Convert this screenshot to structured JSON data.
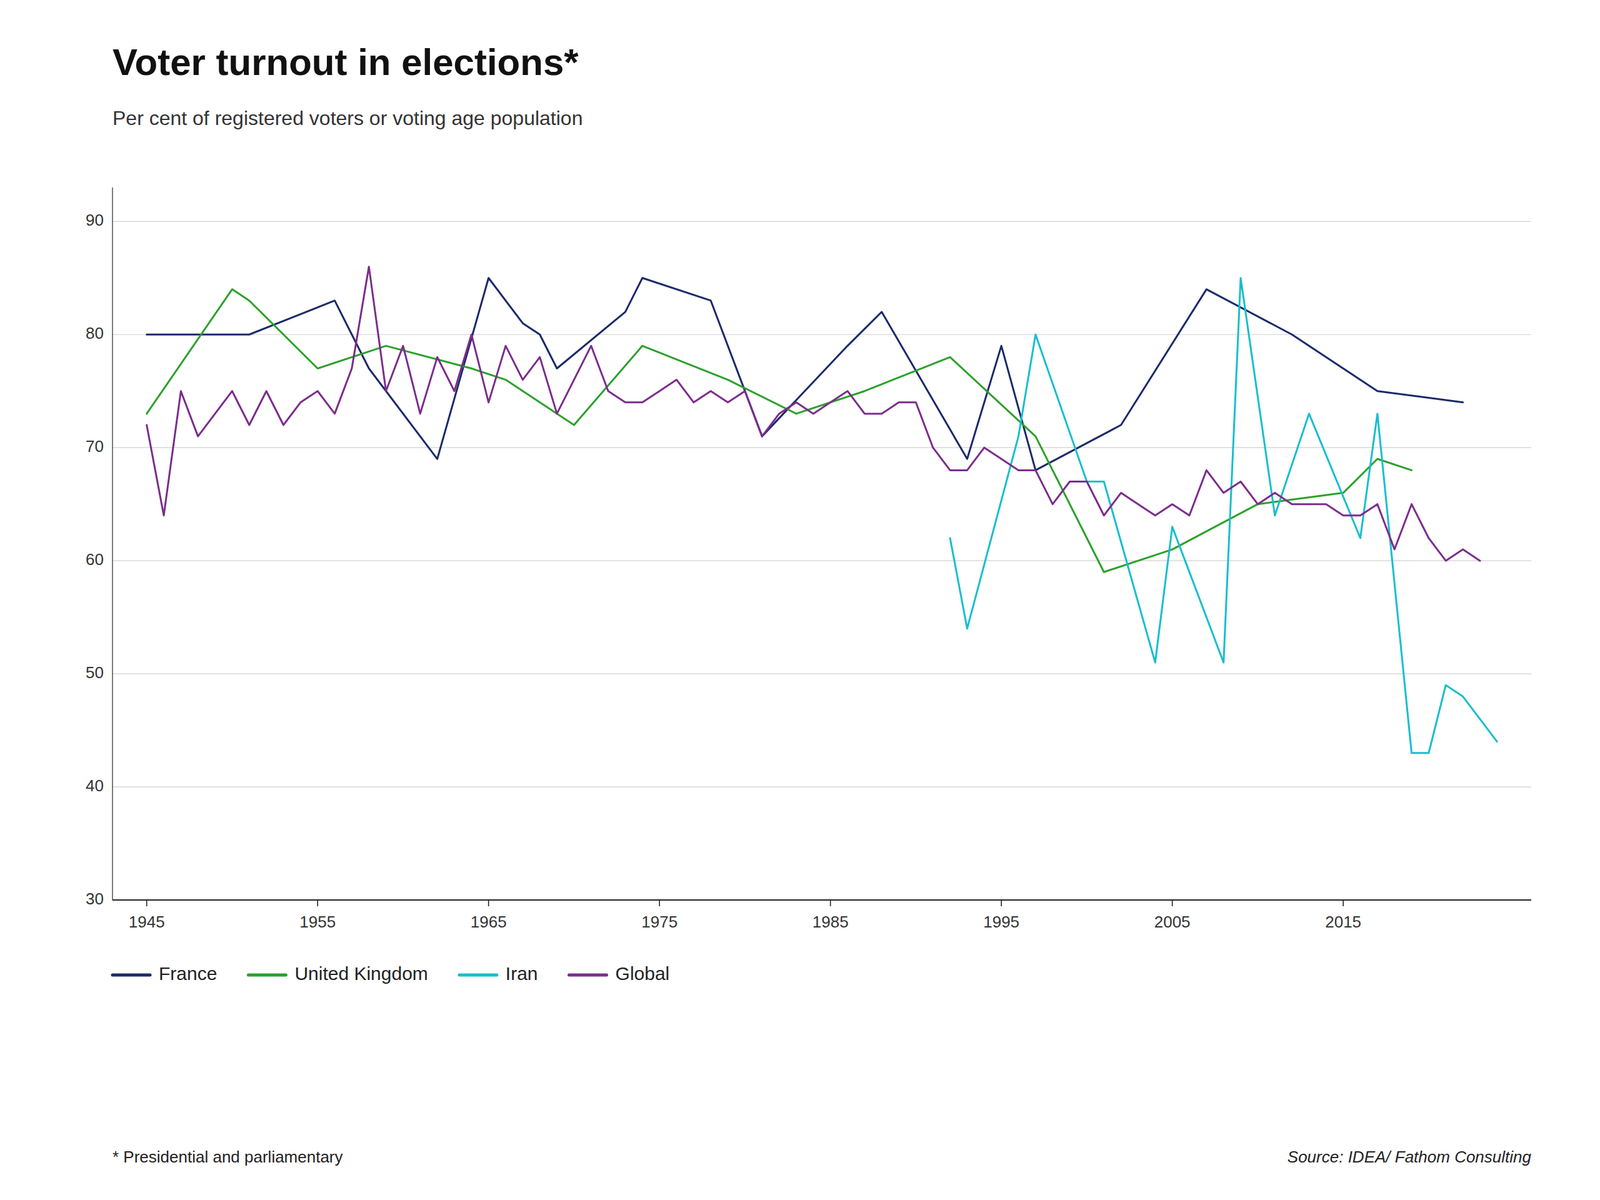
{
  "chart_data": {
    "type": "line",
    "title": "Voter turnout in elections*",
    "subtitle": "Per cent of registered voters or voting age population",
    "footnote": "* Presidential and parliamentary",
    "source": "Source: IDEA/ Fathom Consulting",
    "ylim": [
      30,
      93
    ],
    "yticks": [
      30,
      40,
      50,
      60,
      70,
      80,
      90
    ],
    "xlim": [
      1943,
      2026
    ],
    "xticks": [
      1945,
      1955,
      1965,
      1975,
      1985,
      1995,
      2005,
      2015
    ],
    "grid": true,
    "legend": "bottom",
    "series": [
      {
        "name": "France",
        "color": "#1b2a6b",
        "x": [
          1945,
          1946,
          1951,
          1956,
          1958,
          1962,
          1965,
          1967,
          1968,
          1969,
          1973,
          1974,
          1978,
          1981,
          1986,
          1988,
          1993,
          1995,
          1997,
          2002,
          2007,
          2012,
          2017,
          2022
        ],
        "values": [
          80,
          80,
          80,
          83,
          77,
          69,
          85,
          81,
          80,
          77,
          82,
          85,
          83,
          71,
          79,
          82,
          69,
          79,
          68,
          72,
          84,
          80,
          75,
          74
        ]
      },
      {
        "name": "United Kingdom",
        "color": "#2ca02c",
        "x": [
          1945,
          1950,
          1951,
          1955,
          1959,
          1964,
          1966,
          1970,
          1974,
          1979,
          1983,
          1987,
          1992,
          1997,
          2001,
          2005,
          2010,
          2015,
          2017,
          2019
        ],
        "values": [
          73,
          84,
          83,
          77,
          79,
          77,
          76,
          72,
          79,
          76,
          73,
          75,
          78,
          71,
          59,
          61,
          65,
          66,
          69,
          68
        ]
      },
      {
        "name": "Iran",
        "color": "#17becf",
        "x": [
          1992,
          1993,
          1996,
          1997,
          2000,
          2001,
          2004,
          2005,
          2008,
          2009,
          2011,
          2013,
          2016,
          2017,
          2019,
          2020,
          2021,
          2022,
          2024
        ],
        "values": [
          62,
          54,
          71,
          80,
          67,
          67,
          51,
          63,
          51,
          85,
          64,
          73,
          62,
          73,
          43,
          43,
          49,
          48,
          44
        ]
      },
      {
        "name": "Global",
        "color": "#7b2d8b",
        "x": [
          1945,
          1946,
          1947,
          1948,
          1949,
          1950,
          1951,
          1952,
          1953,
          1954,
          1955,
          1956,
          1957,
          1958,
          1959,
          1960,
          1961,
          1962,
          1963,
          1964,
          1965,
          1966,
          1967,
          1968,
          1969,
          1970,
          1971,
          1972,
          1973,
          1974,
          1975,
          1976,
          1977,
          1978,
          1979,
          1980,
          1981,
          1982,
          1983,
          1984,
          1985,
          1986,
          1987,
          1988,
          1989,
          1990,
          1991,
          1992,
          1993,
          1994,
          1995,
          1996,
          1997,
          1998,
          1999,
          2000,
          2001,
          2002,
          2003,
          2004,
          2005,
          2006,
          2007,
          2008,
          2009,
          2010,
          2011,
          2012,
          2013,
          2014,
          2015,
          2016,
          2017,
          2018,
          2019,
          2020,
          2021,
          2022,
          2023
        ],
        "values": [
          72,
          64,
          75,
          71,
          73,
          75,
          72,
          75,
          72,
          74,
          75,
          73,
          77,
          86,
          75,
          79,
          73,
          78,
          75,
          80,
          74,
          79,
          76,
          78,
          73,
          76,
          79,
          75,
          74,
          74,
          75,
          76,
          74,
          75,
          74,
          75,
          71,
          73,
          74,
          73,
          74,
          75,
          73,
          73,
          74,
          74,
          70,
          68,
          68,
          70,
          69,
          68,
          68,
          65,
          67,
          67,
          64,
          66,
          65,
          64,
          65,
          64,
          68,
          66,
          67,
          65,
          66,
          65,
          65,
          65,
          64,
          64,
          65,
          61,
          65,
          62,
          60,
          61,
          60
        ]
      }
    ]
  }
}
